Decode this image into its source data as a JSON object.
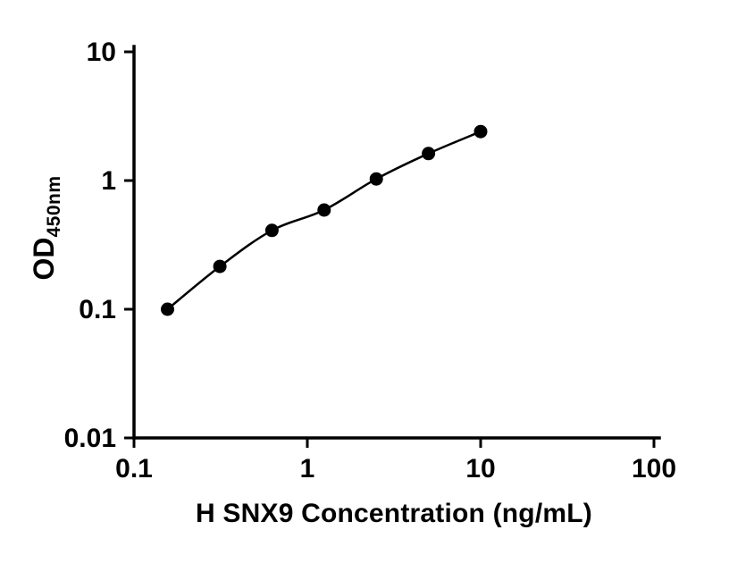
{
  "chart_data": {
    "type": "scatter",
    "title": "",
    "xlabel": "H SNX9 Concentration (ng/mL)",
    "ylabel_main": "OD",
    "ylabel_sub": "450nm",
    "x_scale": "log",
    "y_scale": "log",
    "xlim": [
      0.1,
      100
    ],
    "ylim": [
      0.01,
      10
    ],
    "x": [
      0.156,
      0.313,
      0.625,
      1.25,
      2.5,
      5,
      10
    ],
    "y": [
      0.1,
      0.215,
      0.41,
      0.59,
      1.03,
      1.62,
      2.4
    ],
    "x_ticks": {
      "values": [
        0.1,
        1,
        10,
        100
      ],
      "labels": [
        "0.1",
        "1",
        "10",
        "100"
      ]
    },
    "y_ticks": {
      "values": [
        0.01,
        0.1,
        1,
        10
      ],
      "labels": [
        "0.01",
        "0.1",
        "1",
        "10"
      ]
    },
    "line_color": "#000000",
    "marker_color": "#000000",
    "axis_color": "#000000",
    "grid": false,
    "legend": "none"
  }
}
